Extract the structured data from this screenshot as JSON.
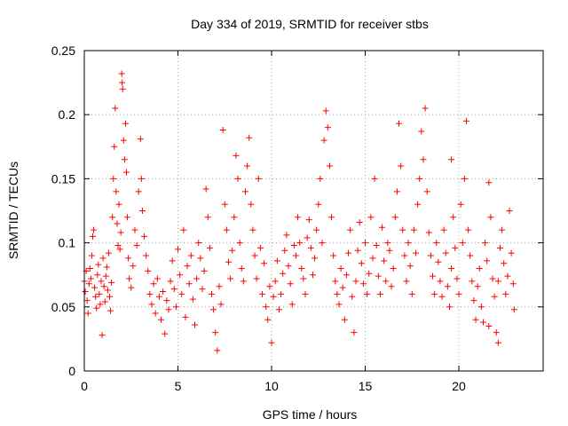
{
  "chart_data": {
    "type": "scatter",
    "title": "Day 334 of 2019, SRMTID for receiver stbs",
    "xlabel": "GPS time / hours",
    "ylabel": "SRMTID / TECUs",
    "xlim": [
      0,
      24.5
    ],
    "ylim": [
      0,
      0.25
    ],
    "xticks": [
      0,
      5,
      10,
      15,
      20
    ],
    "xtick_labels": [
      "0",
      "5",
      "10",
      "15",
      "20"
    ],
    "yticks": [
      0,
      0.05,
      0.1,
      0.15,
      0.2,
      0.25
    ],
    "ytick_labels": [
      "0",
      "0.05",
      "0.1",
      "0.15",
      "0.2",
      "0.25"
    ],
    "grid": true,
    "marker": "plus",
    "color": "#ff0000",
    "series": [
      {
        "points": [
          [
            0.0,
            0.07
          ],
          [
            0.05,
            0.062
          ],
          [
            0.1,
            0.078
          ],
          [
            0.15,
            0.055
          ],
          [
            0.2,
            0.045
          ],
          [
            0.25,
            0.068
          ],
          [
            0.3,
            0.08
          ],
          [
            0.35,
            0.072
          ],
          [
            0.4,
            0.09
          ],
          [
            0.45,
            0.105
          ],
          [
            0.5,
            0.11
          ],
          [
            0.55,
            0.065
          ],
          [
            0.6,
            0.058
          ],
          [
            0.65,
            0.049
          ],
          [
            0.7,
            0.075
          ],
          [
            0.75,
            0.083
          ],
          [
            0.8,
            0.06
          ],
          [
            0.85,
            0.052
          ],
          [
            0.9,
            0.07
          ],
          [
            0.95,
            0.028
          ],
          [
            1.0,
            0.088
          ],
          [
            1.05,
            0.066
          ],
          [
            1.1,
            0.054
          ],
          [
            1.15,
            0.074
          ],
          [
            1.2,
            0.081
          ],
          [
            1.25,
            0.063
          ],
          [
            1.3,
            0.092
          ],
          [
            1.35,
            0.058
          ],
          [
            1.4,
            0.047
          ],
          [
            1.45,
            0.069
          ],
          [
            1.5,
            0.12
          ],
          [
            1.55,
            0.15
          ],
          [
            1.6,
            0.175
          ],
          [
            1.65,
            0.205
          ],
          [
            1.7,
            0.14
          ],
          [
            1.75,
            0.115
          ],
          [
            1.8,
            0.098
          ],
          [
            1.85,
            0.13
          ],
          [
            1.9,
            0.095
          ],
          [
            1.95,
            0.108
          ],
          [
            2.0,
            0.232
          ],
          [
            2.02,
            0.225
          ],
          [
            2.05,
            0.22
          ],
          [
            2.1,
            0.18
          ],
          [
            2.15,
            0.165
          ],
          [
            2.2,
            0.193
          ],
          [
            2.25,
            0.155
          ],
          [
            2.3,
            0.12
          ],
          [
            2.35,
            0.088
          ],
          [
            2.4,
            0.072
          ],
          [
            2.5,
            0.065
          ],
          [
            2.6,
            0.082
          ],
          [
            2.7,
            0.11
          ],
          [
            2.8,
            0.098
          ],
          [
            2.9,
            0.14
          ],
          [
            3.0,
            0.181
          ],
          [
            3.05,
            0.15
          ],
          [
            3.1,
            0.125
          ],
          [
            3.2,
            0.105
          ],
          [
            3.3,
            0.09
          ],
          [
            3.4,
            0.078
          ],
          [
            3.5,
            0.06
          ],
          [
            3.6,
            0.052
          ],
          [
            3.7,
            0.068
          ],
          [
            3.8,
            0.045
          ],
          [
            3.9,
            0.072
          ],
          [
            4.0,
            0.058
          ],
          [
            4.1,
            0.04
          ],
          [
            4.2,
            0.062
          ],
          [
            4.3,
            0.029
          ],
          [
            4.4,
            0.055
          ],
          [
            4.5,
            0.048
          ],
          [
            4.6,
            0.07
          ],
          [
            4.7,
            0.086
          ],
          [
            4.8,
            0.064
          ],
          [
            4.9,
            0.05
          ],
          [
            5.0,
            0.095
          ],
          [
            5.1,
            0.075
          ],
          [
            5.2,
            0.06
          ],
          [
            5.3,
            0.11
          ],
          [
            5.4,
            0.042
          ],
          [
            5.5,
            0.082
          ],
          [
            5.6,
            0.068
          ],
          [
            5.7,
            0.09
          ],
          [
            5.8,
            0.056
          ],
          [
            5.9,
            0.036
          ],
          [
            6.0,
            0.072
          ],
          [
            6.1,
            0.1
          ],
          [
            6.2,
            0.088
          ],
          [
            6.3,
            0.064
          ],
          [
            6.4,
            0.078
          ],
          [
            6.5,
            0.142
          ],
          [
            6.6,
            0.12
          ],
          [
            6.7,
            0.096
          ],
          [
            6.8,
            0.06
          ],
          [
            6.9,
            0.048
          ],
          [
            7.0,
            0.03
          ],
          [
            7.1,
            0.016
          ],
          [
            7.2,
            0.066
          ],
          [
            7.3,
            0.052
          ],
          [
            7.4,
            0.188
          ],
          [
            7.5,
            0.13
          ],
          [
            7.6,
            0.11
          ],
          [
            7.7,
            0.085
          ],
          [
            7.8,
            0.072
          ],
          [
            7.9,
            0.094
          ],
          [
            8.0,
            0.12
          ],
          [
            8.1,
            0.168
          ],
          [
            8.2,
            0.15
          ],
          [
            8.3,
            0.1
          ],
          [
            8.4,
            0.08
          ],
          [
            8.5,
            0.07
          ],
          [
            8.6,
            0.14
          ],
          [
            8.7,
            0.16
          ],
          [
            8.8,
            0.182
          ],
          [
            8.9,
            0.13
          ],
          [
            9.0,
            0.11
          ],
          [
            9.1,
            0.09
          ],
          [
            9.2,
            0.072
          ],
          [
            9.3,
            0.15
          ],
          [
            9.4,
            0.096
          ],
          [
            9.5,
            0.06
          ],
          [
            9.6,
            0.084
          ],
          [
            9.7,
            0.05
          ],
          [
            9.8,
            0.04
          ],
          [
            9.9,
            0.066
          ],
          [
            10.0,
            0.022
          ],
          [
            10.1,
            0.058
          ],
          [
            10.2,
            0.07
          ],
          [
            10.3,
            0.086
          ],
          [
            10.4,
            0.048
          ],
          [
            10.5,
            0.06
          ],
          [
            10.6,
            0.076
          ],
          [
            10.7,
            0.094
          ],
          [
            10.8,
            0.106
          ],
          [
            10.9,
            0.082
          ],
          [
            11.0,
            0.068
          ],
          [
            11.1,
            0.052
          ],
          [
            11.2,
            0.098
          ],
          [
            11.3,
            0.09
          ],
          [
            11.4,
            0.12
          ],
          [
            11.5,
            0.1
          ],
          [
            11.6,
            0.08
          ],
          [
            11.7,
            0.072
          ],
          [
            11.8,
            0.06
          ],
          [
            11.9,
            0.104
          ],
          [
            12.0,
            0.118
          ],
          [
            12.1,
            0.096
          ],
          [
            12.2,
            0.075
          ],
          [
            12.3,
            0.088
          ],
          [
            12.4,
            0.11
          ],
          [
            12.5,
            0.13
          ],
          [
            12.6,
            0.15
          ],
          [
            12.7,
            0.1
          ],
          [
            12.8,
            0.18
          ],
          [
            12.9,
            0.203
          ],
          [
            13.0,
            0.19
          ],
          [
            13.1,
            0.16
          ],
          [
            13.2,
            0.12
          ],
          [
            13.3,
            0.09
          ],
          [
            13.4,
            0.07
          ],
          [
            13.5,
            0.06
          ],
          [
            13.6,
            0.052
          ],
          [
            13.7,
            0.08
          ],
          [
            13.8,
            0.065
          ],
          [
            13.9,
            0.04
          ],
          [
            14.0,
            0.075
          ],
          [
            14.1,
            0.092
          ],
          [
            14.2,
            0.11
          ],
          [
            14.3,
            0.058
          ],
          [
            14.4,
            0.03
          ],
          [
            14.5,
            0.07
          ],
          [
            14.6,
            0.094
          ],
          [
            14.7,
            0.116
          ],
          [
            14.8,
            0.084
          ],
          [
            14.9,
            0.068
          ],
          [
            15.0,
            0.1
          ],
          [
            15.1,
            0.06
          ],
          [
            15.2,
            0.076
          ],
          [
            15.3,
            0.12
          ],
          [
            15.4,
            0.088
          ],
          [
            15.5,
            0.15
          ],
          [
            15.6,
            0.098
          ],
          [
            15.7,
            0.074
          ],
          [
            15.8,
            0.06
          ],
          [
            15.9,
            0.112
          ],
          [
            16.0,
            0.086
          ],
          [
            16.1,
            0.07
          ],
          [
            16.2,
            0.1
          ],
          [
            16.3,
            0.094
          ],
          [
            16.4,
            0.066
          ],
          [
            16.5,
            0.08
          ],
          [
            16.6,
            0.12
          ],
          [
            16.7,
            0.14
          ],
          [
            16.8,
            0.193
          ],
          [
            16.9,
            0.16
          ],
          [
            17.0,
            0.11
          ],
          [
            17.1,
            0.09
          ],
          [
            17.2,
            0.07
          ],
          [
            17.3,
            0.1
          ],
          [
            17.4,
            0.082
          ],
          [
            17.5,
            0.06
          ],
          [
            17.6,
            0.11
          ],
          [
            17.7,
            0.092
          ],
          [
            17.8,
            0.13
          ],
          [
            17.9,
            0.15
          ],
          [
            18.0,
            0.187
          ],
          [
            18.1,
            0.165
          ],
          [
            18.2,
            0.205
          ],
          [
            18.3,
            0.14
          ],
          [
            18.4,
            0.108
          ],
          [
            18.5,
            0.09
          ],
          [
            18.6,
            0.074
          ],
          [
            18.7,
            0.06
          ],
          [
            18.8,
            0.1
          ],
          [
            18.9,
            0.085
          ],
          [
            19.0,
            0.07
          ],
          [
            19.1,
            0.058
          ],
          [
            19.2,
            0.11
          ],
          [
            19.3,
            0.092
          ],
          [
            19.4,
            0.066
          ],
          [
            19.5,
            0.05
          ],
          [
            19.6,
            0.08
          ],
          [
            19.7,
            0.12
          ],
          [
            19.8,
            0.096
          ],
          [
            19.9,
            0.072
          ],
          [
            20.0,
            0.06
          ],
          [
            20.1,
            0.13
          ],
          [
            20.2,
            0.1
          ],
          [
            20.3,
            0.15
          ],
          [
            20.4,
            0.195
          ],
          [
            20.5,
            0.11
          ],
          [
            20.6,
            0.09
          ],
          [
            20.7,
            0.07
          ],
          [
            20.8,
            0.055
          ],
          [
            20.9,
            0.04
          ],
          [
            21.0,
            0.066
          ],
          [
            21.1,
            0.08
          ],
          [
            21.2,
            0.05
          ],
          [
            21.3,
            0.038
          ],
          [
            21.4,
            0.1
          ],
          [
            21.5,
            0.086
          ],
          [
            21.6,
            0.147
          ],
          [
            21.7,
            0.12
          ],
          [
            21.8,
            0.072
          ],
          [
            21.9,
            0.058
          ],
          [
            22.0,
            0.03
          ],
          [
            22.1,
            0.07
          ],
          [
            22.2,
            0.096
          ],
          [
            22.3,
            0.11
          ],
          [
            22.4,
            0.084
          ],
          [
            22.5,
            0.06
          ],
          [
            22.6,
            0.074
          ],
          [
            22.7,
            0.125
          ],
          [
            22.8,
            0.092
          ],
          [
            22.9,
            0.068
          ],
          [
            22.95,
            0.048
          ],
          [
            22.1,
            0.022
          ],
          [
            21.6,
            0.035
          ],
          [
            19.6,
            0.165
          ]
        ]
      }
    ]
  }
}
